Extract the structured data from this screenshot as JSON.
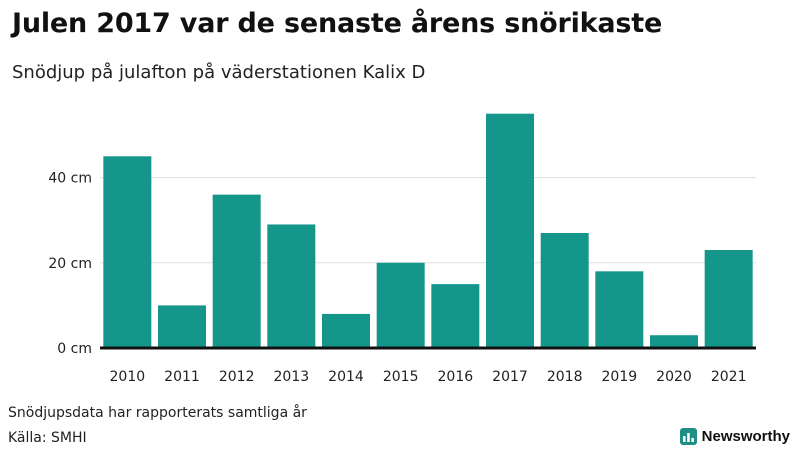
{
  "title": "Julen 2017 var de senaste årens snörikaste",
  "subtitle": "Snödjup på julafton på väderstationen Kalix D",
  "note": "Snödjupsdata har rapporterats samtliga år",
  "source": "Källa: SMHI",
  "brand": "Newsworthy",
  "colors": {
    "bar": "#14968a",
    "grid": "#dddddd",
    "axis": "#111111",
    "brand": "#1f8f85"
  },
  "chart_data": {
    "type": "bar",
    "title": "Julen 2017 var de senaste årens snörikaste",
    "subtitle": "Snödjup på julafton på väderstationen Kalix D",
    "categories": [
      "2010",
      "2011",
      "2012",
      "2013",
      "2014",
      "2015",
      "2016",
      "2017",
      "2018",
      "2019",
      "2020",
      "2021"
    ],
    "values": [
      45,
      10,
      36,
      29,
      8,
      20,
      15,
      55,
      27,
      18,
      3,
      23
    ],
    "unit": "cm",
    "yticks": [
      0,
      20,
      40
    ],
    "ytick_labels": [
      "0 cm",
      "20 cm",
      "40 cm"
    ],
    "ylim": [
      0,
      55
    ],
    "grid": true,
    "xlabel": "",
    "ylabel": ""
  }
}
